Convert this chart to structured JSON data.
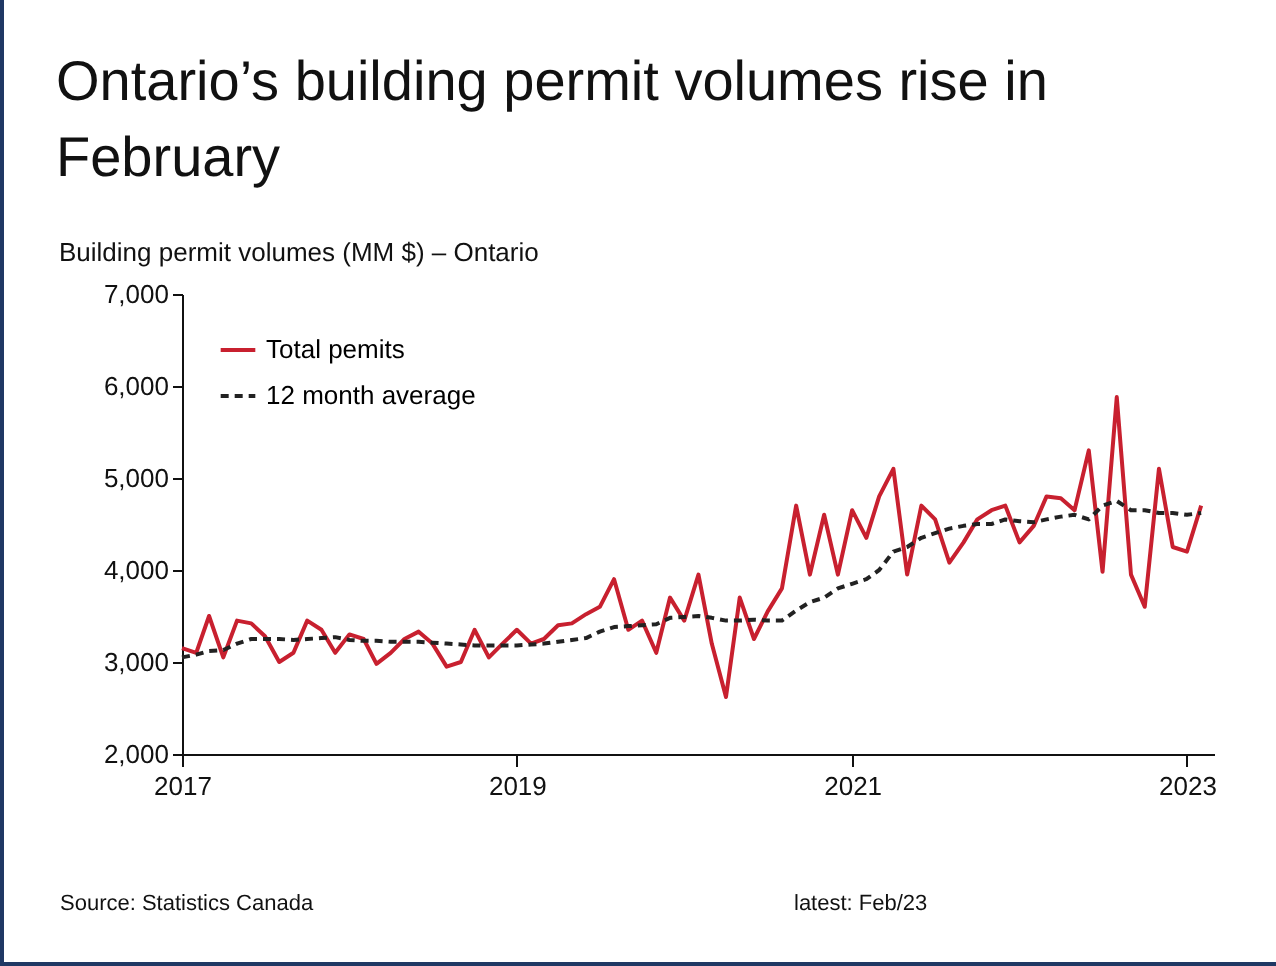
{
  "chart_data": {
    "type": "line",
    "title": "Ontario’s building permit volumes rise in February",
    "ylabel": "Building permit volumes (MM $) – Ontario",
    "x": [
      "2017-01",
      "2017-02",
      "2017-03",
      "2017-04",
      "2017-05",
      "2017-06",
      "2017-07",
      "2017-08",
      "2017-09",
      "2017-10",
      "2017-11",
      "2017-12",
      "2018-01",
      "2018-02",
      "2018-03",
      "2018-04",
      "2018-05",
      "2018-06",
      "2018-07",
      "2018-08",
      "2018-09",
      "2018-10",
      "2018-11",
      "2018-12",
      "2019-01",
      "2019-02",
      "2019-03",
      "2019-04",
      "2019-05",
      "2019-06",
      "2019-07",
      "2019-08",
      "2019-09",
      "2019-10",
      "2019-11",
      "2019-12",
      "2020-01",
      "2020-02",
      "2020-03",
      "2020-04",
      "2020-05",
      "2020-06",
      "2020-07",
      "2020-08",
      "2020-09",
      "2020-10",
      "2020-11",
      "2020-12",
      "2021-01",
      "2021-02",
      "2021-03",
      "2021-04",
      "2021-05",
      "2021-06",
      "2021-07",
      "2021-08",
      "2021-09",
      "2021-10",
      "2021-11",
      "2021-12",
      "2022-01",
      "2022-02",
      "2022-03",
      "2022-04",
      "2022-05",
      "2022-06",
      "2022-07",
      "2022-08",
      "2022-09",
      "2022-10",
      "2022-11",
      "2022-12",
      "2023-01",
      "2023-02"
    ],
    "series": [
      {
        "name": "Total pemits",
        "color": "#c8202f",
        "line_style": "solid",
        "values": [
          3150,
          3100,
          3500,
          3050,
          3450,
          3420,
          3280,
          3000,
          3100,
          3450,
          3350,
          3100,
          3300,
          3250,
          2980,
          3100,
          3250,
          3330,
          3200,
          2950,
          3000,
          3350,
          3050,
          3200,
          3350,
          3200,
          3250,
          3400,
          3420,
          3520,
          3600,
          3900,
          3350,
          3450,
          3100,
          3700,
          3450,
          3950,
          3200,
          2620,
          3700,
          3250,
          3550,
          3800,
          4700,
          3950,
          4600,
          3950,
          4650,
          4350,
          4800,
          5100,
          3950,
          4700,
          4550,
          4080,
          4300,
          4550,
          4650,
          4700,
          4300,
          4480,
          4800,
          4780,
          4650,
          5300,
          3980,
          5880,
          3950,
          3600,
          5100,
          4250,
          4200,
          4700
        ]
      },
      {
        "name": "12 month average",
        "color": "#222222",
        "line_style": "dashed",
        "values": [
          3050,
          3080,
          3120,
          3130,
          3200,
          3250,
          3250,
          3250,
          3240,
          3250,
          3260,
          3270,
          3240,
          3230,
          3230,
          3220,
          3220,
          3220,
          3210,
          3200,
          3190,
          3180,
          3180,
          3180,
          3180,
          3190,
          3200,
          3220,
          3240,
          3260,
          3330,
          3380,
          3390,
          3400,
          3410,
          3480,
          3490,
          3500,
          3480,
          3450,
          3450,
          3460,
          3450,
          3450,
          3560,
          3650,
          3700,
          3800,
          3850,
          3900,
          4000,
          4200,
          4250,
          4350,
          4400,
          4450,
          4480,
          4500,
          4500,
          4550,
          4530,
          4520,
          4550,
          4580,
          4600,
          4550,
          4700,
          4750,
          4650,
          4650,
          4620,
          4620,
          4600,
          4620
        ]
      }
    ],
    "xlim": [
      "2017-01",
      "2023-03"
    ],
    "xticks": [
      {
        "value": "2017-01",
        "label": "2017"
      },
      {
        "value": "2019-01",
        "label": "2019"
      },
      {
        "value": "2021-01",
        "label": "2021"
      },
      {
        "value": "2023-01",
        "label": "2023"
      }
    ],
    "ylim": [
      2000,
      7000
    ],
    "yticks": [
      {
        "value": 2000,
        "label": "2,000"
      },
      {
        "value": 3000,
        "label": "3,000"
      },
      {
        "value": 4000,
        "label": "4,000"
      },
      {
        "value": 5000,
        "label": "5,000"
      },
      {
        "value": 6000,
        "label": "6,000"
      },
      {
        "value": 7000,
        "label": "7,000"
      }
    ],
    "legend": "top left",
    "marker": "none",
    "annotations": [
      "Source: Statistics Canada",
      "latest: Feb/23"
    ]
  }
}
